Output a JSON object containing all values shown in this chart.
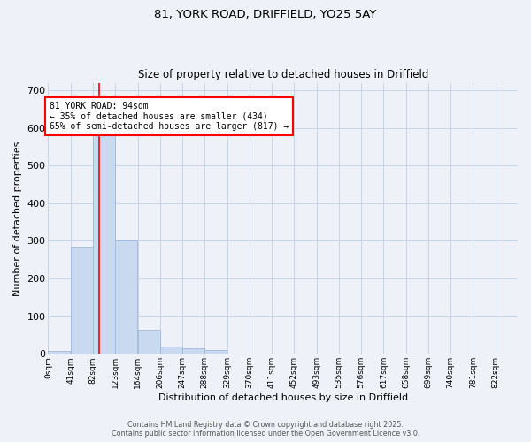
{
  "title_line1": "81, YORK ROAD, DRIFFIELD, YO25 5AY",
  "title_line2": "Size of property relative to detached houses in Driffield",
  "xlabel": "Distribution of detached houses by size in Driffield",
  "ylabel": "Number of detached properties",
  "bin_labels": [
    "0sqm",
    "41sqm",
    "82sqm",
    "123sqm",
    "164sqm",
    "206sqm",
    "247sqm",
    "288sqm",
    "329sqm",
    "370sqm",
    "411sqm",
    "452sqm",
    "493sqm",
    "535sqm",
    "576sqm",
    "617sqm",
    "658sqm",
    "699sqm",
    "740sqm",
    "781sqm",
    "822sqm"
  ],
  "bar_values": [
    8,
    285,
    580,
    300,
    65,
    20,
    15,
    10,
    0,
    0,
    0,
    0,
    0,
    0,
    0,
    0,
    0,
    0,
    0,
    0,
    0
  ],
  "bar_color": "#c9d9f0",
  "bar_edge_color": "#a0b8d8",
  "property_line_x": 94,
  "annotation_text": "81 YORK ROAD: 94sqm\n← 35% of detached houses are smaller (434)\n65% of semi-detached houses are larger (817) →",
  "annotation_box_color": "white",
  "annotation_box_edge": "red",
  "vline_color": "red",
  "ylim": [
    0,
    720
  ],
  "yticks": [
    0,
    100,
    200,
    300,
    400,
    500,
    600,
    700
  ],
  "bin_width": 41,
  "footer_line1": "Contains HM Land Registry data © Crown copyright and database right 2025.",
  "footer_line2": "Contains public sector information licensed under the Open Government Licence v3.0.",
  "bg_color": "#eef2f8",
  "grid_color": "#c8d4e8"
}
